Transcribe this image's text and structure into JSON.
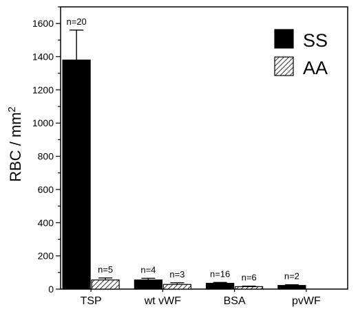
{
  "chart_data": {
    "type": "bar",
    "title": "",
    "xlabel": "",
    "ylabel": "RBC / mm",
    "ylabel_superscript": "2",
    "ylim": [
      0,
      1700
    ],
    "yticks": [
      0,
      200,
      400,
      600,
      800,
      1000,
      1200,
      1400,
      1600
    ],
    "categories": [
      "TSP",
      "wt vWF",
      "BSA",
      "pvWF"
    ],
    "series": [
      {
        "name": "SS",
        "fill": "solid",
        "color": "#000000",
        "values": [
          1380,
          55,
          35,
          22
        ],
        "errors": [
          180,
          10,
          5,
          4
        ],
        "n_labels": [
          "n=20",
          "n=4",
          "n=16",
          "n=2"
        ]
      },
      {
        "name": "AA",
        "fill": "hatched",
        "color": "#000000",
        "values": [
          55,
          28,
          15,
          null
        ],
        "errors": [
          12,
          10,
          3,
          null
        ],
        "n_labels": [
          "n=5",
          "n=3",
          "n=6",
          null
        ]
      }
    ],
    "legend": {
      "position": "top-right",
      "entries": [
        "SS",
        "AA"
      ]
    },
    "grid": false
  }
}
